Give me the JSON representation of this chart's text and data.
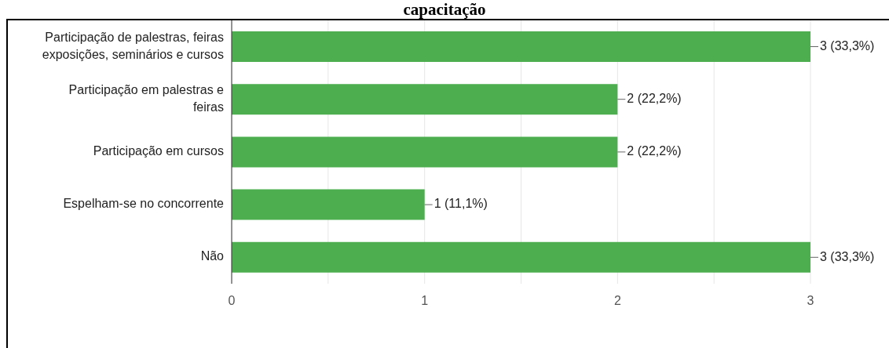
{
  "chart_data": {
    "type": "bar",
    "orientation": "horizontal",
    "title": "capacitação",
    "categories": [
      "Participação de palestras, feiras exposições, seminários e cursos",
      "Participação em palestras e feiras",
      "Participação em cursos",
      "Espelham-se no concorrente",
      "Não"
    ],
    "values": [
      3,
      2,
      2,
      1,
      3
    ],
    "value_labels": [
      "3 (33,3%)",
      "2 (22,2%)",
      "2 (22,2%)",
      "1 (11,1%)",
      "3 (33,3%)"
    ],
    "color": "#4cae4f",
    "xlim": [
      0,
      3
    ],
    "xticks": [
      0,
      {
        "value": 0.5,
        "label": null
      },
      1,
      {
        "value": 1.5,
        "label": null
      },
      2,
      {
        "value": 2.5,
        "label": null
      },
      3
    ],
    "grid": "x",
    "legend": false
  }
}
